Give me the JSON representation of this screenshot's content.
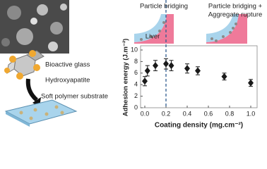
{
  "chart_data": {
    "type": "scatter",
    "x_label": "Coating density (mg.cm⁻²)",
    "y_label": "Adhesion energy (J.m⁻²)",
    "x": [
      0,
      0.025,
      0.1,
      0.2,
      0.25,
      0.4,
      0.5,
      0.75,
      1.0
    ],
    "values": [
      4.6,
      6.4,
      7.3,
      7.6,
      7.3,
      6.8,
      6.4,
      5.4,
      4.3
    ],
    "errors": [
      0.8,
      0.9,
      0.9,
      0.9,
      0.9,
      0.8,
      0.7,
      0.6,
      0.6
    ],
    "color": "#1a1a1a",
    "xlim": [
      -0.04,
      1.06
    ],
    "ylim": [
      0,
      10
    ],
    "xticks": [
      {
        "value": 0,
        "label": "0.0"
      },
      0.2,
      0.4,
      0.6,
      0.8,
      {
        "value": 1,
        "label": "1.0"
      }
    ],
    "yticks": [
      0,
      2,
      4,
      6,
      8,
      10
    ],
    "reference_x": 0.2,
    "reference_color": "#2f5c8f",
    "annotations": [
      "Particle bridging",
      "Particle bridging +",
      "Aggregate rupture",
      "Liver",
      "Bioactive glass",
      "Hydroxyapatite",
      "Soft polymer substrate"
    ]
  }
}
